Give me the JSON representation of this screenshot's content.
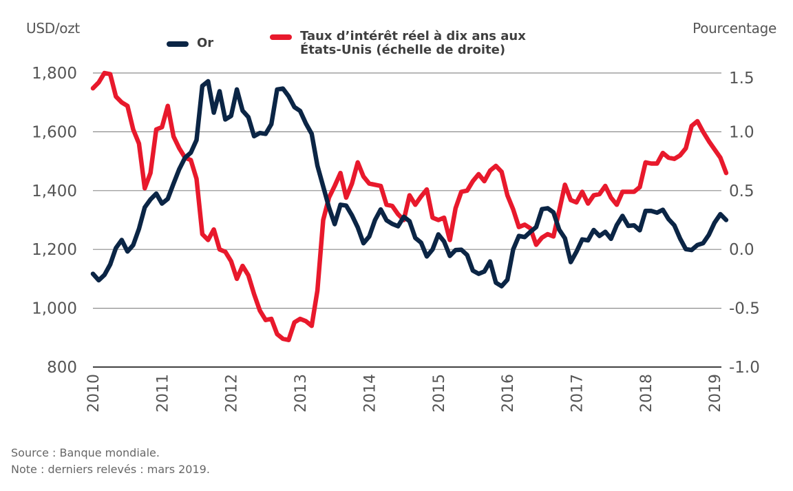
{
  "chart_data": {
    "type": "line",
    "title": "",
    "left_axis": {
      "label": "USD/ozt",
      "range": [
        800,
        1800
      ],
      "ticks": [
        "800",
        "1,000",
        "1,200",
        "1,400",
        "1,600",
        "1,800"
      ],
      "tick_values": [
        800,
        1000,
        1200,
        1400,
        1600,
        1800
      ]
    },
    "right_axis": {
      "label": "Pourcentage",
      "range": [
        -1.0,
        1.5
      ],
      "ticks": [
        "-1.0",
        "-0.5",
        "0.0",
        "0.5",
        "1.0",
        "1.5"
      ],
      "tick_values": [
        -1.0,
        -0.5,
        0.0,
        0.5,
        1.0,
        1.5
      ]
    },
    "x_axis": {
      "start": "2010-01",
      "end": "2019-03",
      "frequency": "monthly",
      "tick_labels": [
        "2010",
        "2011",
        "2012",
        "2013",
        "2014",
        "2015",
        "2016",
        "2017",
        "2018",
        "2019"
      ]
    },
    "grid": true,
    "legend_position": "top",
    "series": [
      {
        "name": "Or",
        "axis": "left",
        "color": "#0b2545",
        "values": [
          1117,
          1095,
          1113,
          1149,
          1205,
          1232,
          1193,
          1215,
          1270,
          1343,
          1370,
          1390,
          1356,
          1372,
          1424,
          1473,
          1512,
          1529,
          1572,
          1756,
          1772,
          1665,
          1738,
          1642,
          1654,
          1744,
          1672,
          1650,
          1585,
          1596,
          1593,
          1626,
          1744,
          1747,
          1721,
          1684,
          1671,
          1628,
          1593,
          1485,
          1414,
          1343,
          1286,
          1352,
          1349,
          1316,
          1275,
          1221,
          1244,
          1300,
          1336,
          1299,
          1287,
          1279,
          1311,
          1296,
          1239,
          1223,
          1176,
          1200,
          1251,
          1227,
          1178,
          1198,
          1199,
          1181,
          1128,
          1117,
          1125,
          1159,
          1087,
          1075,
          1097,
          1200,
          1246,
          1242,
          1260,
          1276,
          1337,
          1340,
          1326,
          1267,
          1238,
          1157,
          1192,
          1234,
          1231,
          1266,
          1246,
          1260,
          1236,
          1283,
          1314,
          1280,
          1282,
          1265,
          1331,
          1331,
          1325,
          1335,
          1303,
          1282,
          1237,
          1201,
          1198,
          1215,
          1221,
          1250,
          1291,
          1320,
          1300
        ]
      },
      {
        "name": "Taux d’intérêt réel à dix ans aux États-Unis (échelle de droite)",
        "axis": "right",
        "color": "#e8192c",
        "values": [
          1.37,
          1.42,
          1.5,
          1.49,
          1.3,
          1.25,
          1.22,
          1.02,
          0.9,
          0.52,
          0.65,
          1.02,
          1.04,
          1.22,
          0.96,
          0.86,
          0.78,
          0.76,
          0.6,
          0.13,
          0.08,
          0.17,
          0.0,
          -0.02,
          -0.1,
          -0.25,
          -0.14,
          -0.22,
          -0.38,
          -0.52,
          -0.6,
          -0.59,
          -0.72,
          -0.76,
          -0.77,
          -0.62,
          -0.59,
          -0.61,
          -0.65,
          -0.35,
          0.25,
          0.44,
          0.54,
          0.65,
          0.44,
          0.56,
          0.74,
          0.62,
          0.56,
          0.55,
          0.54,
          0.38,
          0.37,
          0.3,
          0.25,
          0.46,
          0.38,
          0.45,
          0.51,
          0.27,
          0.25,
          0.27,
          0.08,
          0.35,
          0.49,
          0.5,
          0.58,
          0.64,
          0.58,
          0.67,
          0.71,
          0.66,
          0.46,
          0.34,
          0.19,
          0.21,
          0.18,
          0.04,
          0.1,
          0.13,
          0.11,
          0.33,
          0.55,
          0.42,
          0.4,
          0.49,
          0.39,
          0.46,
          0.47,
          0.54,
          0.44,
          0.38,
          0.49,
          0.49,
          0.49,
          0.53,
          0.74,
          0.73,
          0.73,
          0.82,
          0.78,
          0.77,
          0.8,
          0.86,
          1.05,
          1.09,
          1.0,
          0.92,
          0.85,
          0.78,
          0.65
        ]
      }
    ]
  },
  "legend": {
    "gold_label": "Or",
    "rate_label_line1": "Taux d’intérêt réel à dix ans aux",
    "rate_label_line2": "États-Unis (échelle de droite)"
  },
  "axis_titles": {
    "left": "USD/ozt",
    "right": "Pourcentage"
  },
  "footnotes": {
    "source": "Source : Banque mondiale.",
    "note": "Note : derniers relevés : mars 2019."
  }
}
